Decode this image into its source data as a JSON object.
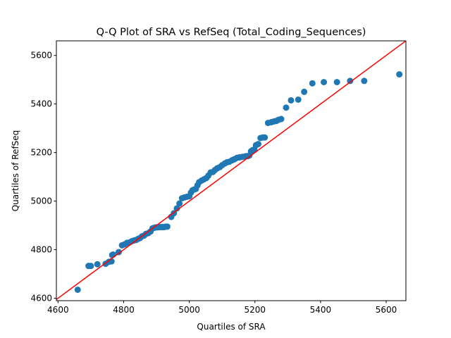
{
  "chart_data": {
    "type": "scatter",
    "title": "Q-Q Plot of SRA vs RefSeq (Total_Coding_Sequences)",
    "xlabel": "Quartiles of SRA",
    "ylabel": "Quartiles of RefSeq",
    "xlim": [
      4595,
      5660
    ],
    "ylim": [
      4590,
      5660
    ],
    "xticks": [
      4600,
      4800,
      5000,
      5200,
      5400,
      5600
    ],
    "yticks": [
      4600,
      4800,
      5000,
      5200,
      5400,
      5600
    ],
    "grid": false,
    "marker_color": "#1f77b4",
    "reference_line": {
      "name": "",
      "color": "#ff0000",
      "x": [
        4595,
        5660
      ],
      "y": [
        4595,
        5660
      ]
    },
    "series": [
      {
        "name": "",
        "x": [
          4660,
          4693,
          4700,
          4720,
          4745,
          4755,
          4763,
          4765,
          4768,
          4785,
          4795,
          4803,
          4810,
          4818,
          4825,
          4832,
          4838,
          4845,
          4850,
          4856,
          4862,
          4868,
          4875,
          4882,
          4888,
          4893,
          4898,
          4903,
          4908,
          4913,
          4918,
          4923,
          4928,
          4933,
          4945,
          4953,
          4962,
          4970,
          4978,
          4985,
          4993,
          5000,
          5005,
          5010,
          5015,
          5020,
          5025,
          5030,
          5038,
          5045,
          5052,
          5058,
          5065,
          5072,
          5078,
          5085,
          5093,
          5100,
          5108,
          5115,
          5122,
          5130,
          5137,
          5145,
          5152,
          5160,
          5167,
          5173,
          5178,
          5183,
          5188,
          5193,
          5198,
          5203,
          5210,
          5217,
          5224,
          5230,
          5240,
          5250,
          5258,
          5265,
          5272,
          5280,
          5295,
          5310,
          5332,
          5350,
          5375,
          5410,
          5450,
          5490,
          5533,
          5640
        ],
        "y": [
          4635,
          4733,
          4733,
          4740,
          4742,
          4750,
          4752,
          4778,
          4780,
          4790,
          4818,
          4822,
          4828,
          4830,
          4835,
          4838,
          4840,
          4845,
          4848,
          4855,
          4858,
          4865,
          4868,
          4875,
          4888,
          4890,
          4892,
          4892,
          4893,
          4893,
          4893,
          4893,
          4895,
          4895,
          4935,
          4950,
          4970,
          4990,
          5012,
          5015,
          5018,
          5020,
          5035,
          5045,
          5048,
          5050,
          5065,
          5078,
          5085,
          5090,
          5095,
          5105,
          5118,
          5120,
          5128,
          5135,
          5140,
          5148,
          5155,
          5160,
          5162,
          5168,
          5172,
          5178,
          5180,
          5182,
          5183,
          5185,
          5185,
          5188,
          5205,
          5210,
          5212,
          5230,
          5235,
          5260,
          5262,
          5262,
          5322,
          5325,
          5328,
          5330,
          5335,
          5338,
          5385,
          5415,
          5418,
          5450,
          5485,
          5490,
          5490,
          5495,
          5495,
          5522
        ]
      }
    ]
  }
}
